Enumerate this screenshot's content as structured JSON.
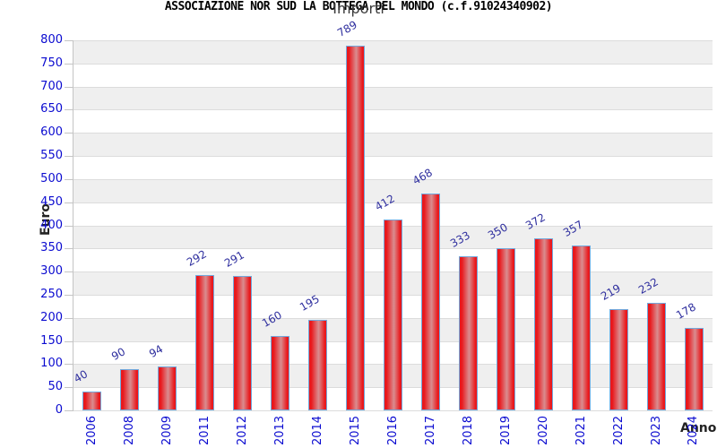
{
  "title": "ASSOCIAZIONE NOR SUD LA BOTTEGA DEL MONDO (c.f.91024340902)",
  "subtitle": "Importi",
  "chart_data": {
    "type": "bar",
    "title": "ASSOCIAZIONE NOR SUD LA BOTTEGA DEL MONDO (c.f.91024340902)",
    "subtitle": "Importi",
    "xlabel": "Anno",
    "ylabel": "Euro",
    "categories": [
      "2006",
      "2008",
      "2009",
      "2011",
      "2012",
      "2013",
      "2014",
      "2015",
      "2016",
      "2017",
      "2018",
      "2019",
      "2020",
      "2021",
      "2022",
      "2023",
      "2024"
    ],
    "values": [
      40,
      90,
      94,
      292,
      291,
      160,
      195,
      789,
      412,
      468,
      333,
      350,
      372,
      357,
      219,
      232,
      178
    ],
    "ylim": [
      0,
      800
    ],
    "ytick_step": 50,
    "grid": "horizontal-bands-every-50",
    "legend": "none",
    "value_labels": "rotated-30deg-above-bars",
    "category_labels": "rotated-90deg-below-axis",
    "colors": {
      "axis_tick_label": "#0b0bd0",
      "value_label": "#2e2e9e",
      "bar_border": "#72a8dc",
      "bar_red": "#e9181c",
      "bar_highlight": "#d98d90",
      "band_gray": "#efefef",
      "band_white": "#ffffff",
      "grid_line": "#dcdcdc",
      "axis_line": "#c4c4c4"
    }
  }
}
